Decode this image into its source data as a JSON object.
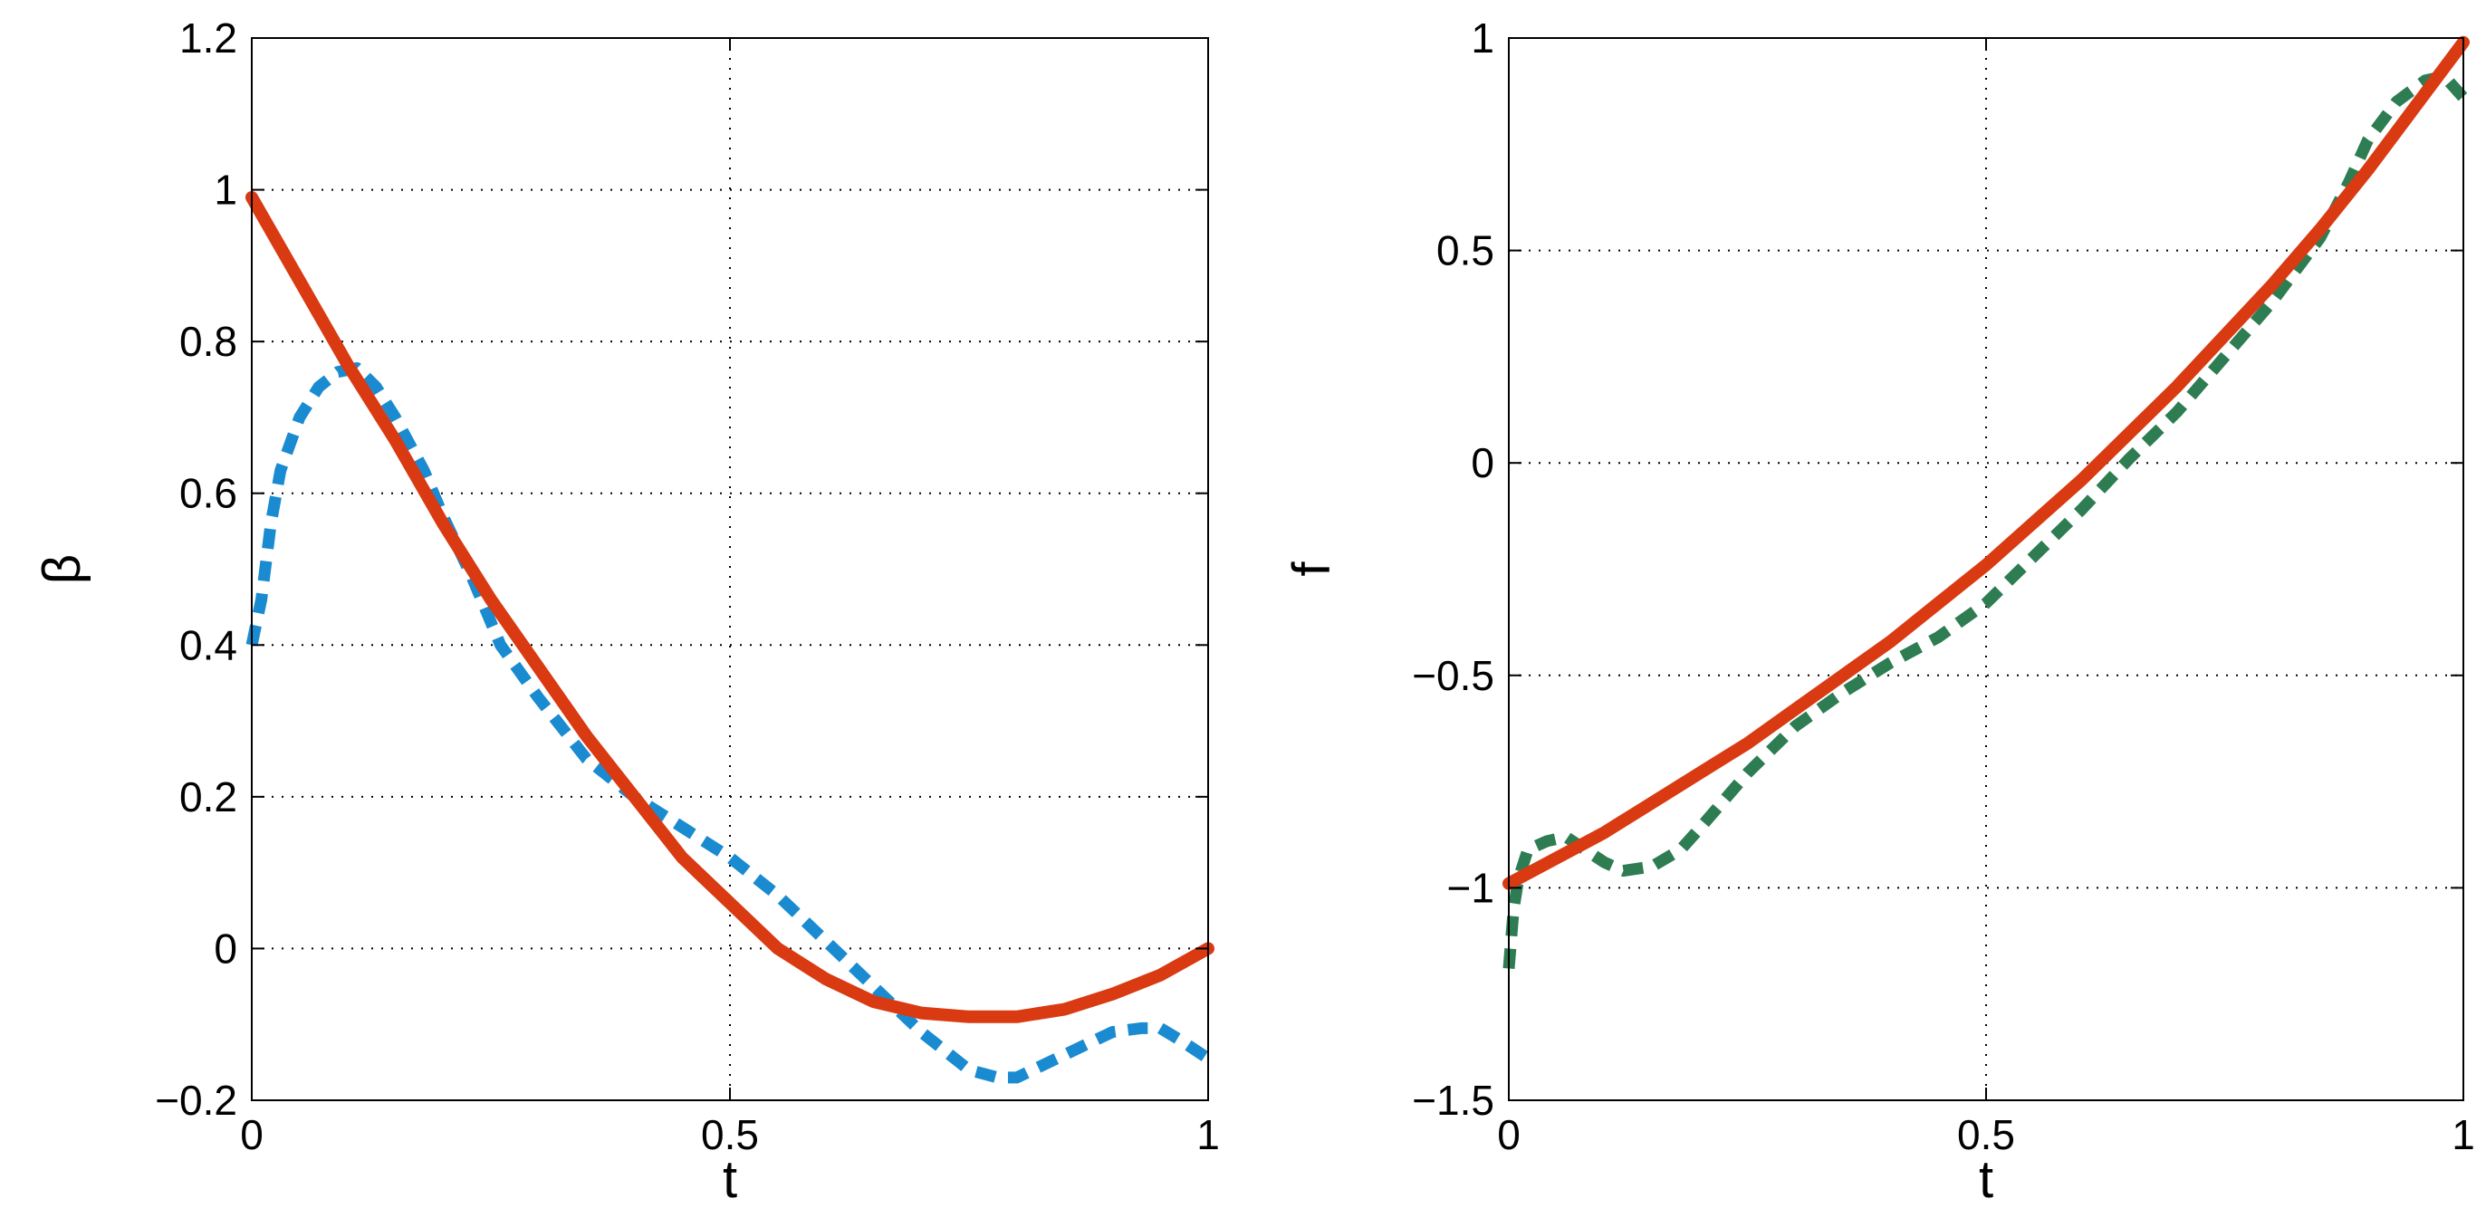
{
  "chart_data": [
    {
      "type": "line",
      "xlabel": "t",
      "ylabel": "β",
      "xlim": [
        0,
        1
      ],
      "ylim": [
        -0.2,
        1.2
      ],
      "grid": true,
      "xticks": [
        0,
        0.5,
        1
      ],
      "xtick_labels": [
        "0",
        "0.5",
        "1"
      ],
      "yticks": [
        -0.2,
        0,
        0.2,
        0.4,
        0.6,
        0.8,
        1,
        1.2
      ],
      "ytick_labels": [
        "−0.2",
        "0",
        "0.2",
        "0.4",
        "0.6",
        "0.8",
        "1",
        "1.2"
      ],
      "series": [
        {
          "style": "solid",
          "color": "#d93a12",
          "x": [
            0,
            0.05,
            0.1,
            0.15,
            0.2,
            0.25,
            0.3,
            0.35,
            0.4,
            0.45,
            0.5,
            0.55,
            0.6,
            0.65,
            0.7,
            0.75,
            0.8,
            0.85,
            0.9,
            0.95,
            1.0
          ],
          "y": [
            0.99,
            0.88,
            0.77,
            0.67,
            0.56,
            0.46,
            0.37,
            0.28,
            0.2,
            0.12,
            0.06,
            0.0,
            -0.04,
            -0.07,
            -0.085,
            -0.09,
            -0.09,
            -0.08,
            -0.06,
            -0.035,
            0.0
          ]
        },
        {
          "style": "dashed",
          "color": "#1a8bd0",
          "x": [
            0,
            0.01,
            0.02,
            0.03,
            0.05,
            0.07,
            0.09,
            0.11,
            0.13,
            0.15,
            0.18,
            0.2,
            0.23,
            0.26,
            0.3,
            0.35,
            0.4,
            0.45,
            0.5,
            0.55,
            0.6,
            0.65,
            0.7,
            0.75,
            0.78,
            0.8,
            0.85,
            0.9,
            0.93,
            0.95,
            0.97,
            1.0
          ],
          "y": [
            0.4,
            0.46,
            0.56,
            0.63,
            0.7,
            0.74,
            0.76,
            0.765,
            0.74,
            0.7,
            0.63,
            0.57,
            0.49,
            0.4,
            0.33,
            0.25,
            0.2,
            0.16,
            0.12,
            0.07,
            0.01,
            -0.05,
            -0.11,
            -0.16,
            -0.17,
            -0.17,
            -0.14,
            -0.11,
            -0.105,
            -0.105,
            -0.12,
            -0.145
          ]
        }
      ]
    },
    {
      "type": "line",
      "xlabel": "t",
      "ylabel": "f",
      "xlim": [
        0,
        1
      ],
      "ylim": [
        -1.5,
        1
      ],
      "grid": true,
      "xticks": [
        0,
        0.5,
        1
      ],
      "xtick_labels": [
        "0",
        "0.5",
        "1"
      ],
      "yticks": [
        -1.5,
        -1,
        -0.5,
        0,
        0.5,
        1
      ],
      "ytick_labels": [
        "−1.5",
        "−1",
        "−0.5",
        "0",
        "0.5",
        "1"
      ],
      "series": [
        {
          "style": "solid",
          "color": "#d93a12",
          "x": [
            0,
            0.05,
            0.1,
            0.15,
            0.2,
            0.25,
            0.3,
            0.35,
            0.4,
            0.45,
            0.5,
            0.55,
            0.6,
            0.65,
            0.7,
            0.75,
            0.8,
            0.85,
            0.9,
            0.95,
            1.0
          ],
          "y": [
            -0.99,
            -0.93,
            -0.87,
            -0.8,
            -0.73,
            -0.66,
            -0.58,
            -0.5,
            -0.42,
            -0.33,
            -0.24,
            -0.14,
            -0.04,
            0.07,
            0.18,
            0.3,
            0.42,
            0.55,
            0.69,
            0.84,
            0.99
          ]
        },
        {
          "style": "dashed",
          "color": "#2e7d52",
          "x": [
            0,
            0.005,
            0.01,
            0.02,
            0.04,
            0.06,
            0.08,
            0.1,
            0.12,
            0.15,
            0.18,
            0.2,
            0.25,
            0.3,
            0.35,
            0.4,
            0.45,
            0.5,
            0.55,
            0.6,
            0.65,
            0.7,
            0.75,
            0.8,
            0.85,
            0.88,
            0.9,
            0.93,
            0.96,
            0.98,
            1.0
          ],
          "y": [
            -1.19,
            -1.05,
            -0.98,
            -0.91,
            -0.89,
            -0.88,
            -0.91,
            -0.94,
            -0.96,
            -0.95,
            -0.91,
            -0.86,
            -0.73,
            -0.62,
            -0.54,
            -0.47,
            -0.41,
            -0.33,
            -0.22,
            -0.11,
            0.01,
            0.12,
            0.25,
            0.38,
            0.53,
            0.66,
            0.76,
            0.85,
            0.9,
            0.91,
            0.86
          ]
        }
      ]
    }
  ]
}
